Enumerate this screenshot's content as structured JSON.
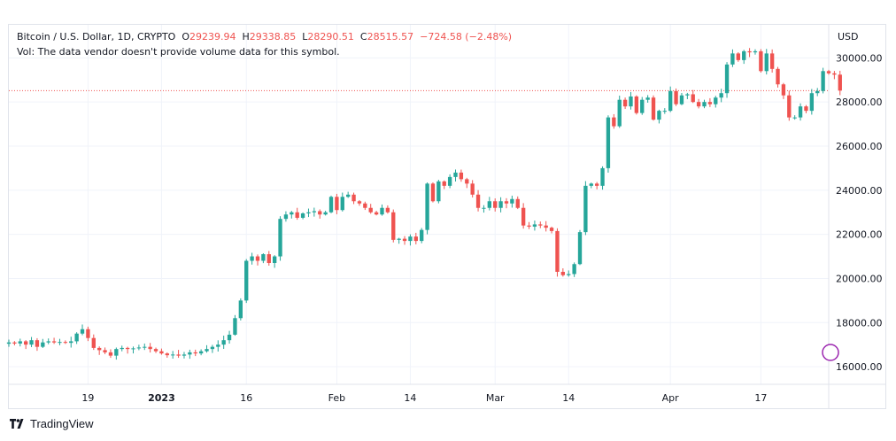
{
  "legend": {
    "symbol": "Bitcoin / U.S. Dollar, 1D, CRYPTO",
    "open_label": "O",
    "open": "29239.94",
    "high_label": "H",
    "high": "29338.85",
    "low_label": "L",
    "low": "28290.51",
    "close_label": "C",
    "close": "28515.57",
    "change": "−724.58 (−2.48%)",
    "volume_note": "Vol: The data vendor doesn't provide volume data for this symbol."
  },
  "brand": {
    "name": "TradingView",
    "logo_icon": "tradingview-logo-icon"
  },
  "colors": {
    "up": "#26a69a",
    "down": "#ef5350",
    "grid": "#f0f3fa",
    "text": "#131722",
    "last_price_line": "#ef5350",
    "marker": "#9c27b0"
  },
  "chart_data": {
    "type": "candlestick",
    "currency_label": "USD",
    "y_ticks": [
      16000,
      18000,
      20000,
      22000,
      24000,
      26000,
      28000,
      30000
    ],
    "y_tick_labels": [
      "16000.00",
      "18000.00",
      "20000.00",
      "22000.00",
      "24000.00",
      "26000.00",
      "28000.00",
      "30000.00"
    ],
    "ylim": [
      15200,
      31500
    ],
    "x_ticks": [
      {
        "date": "2022-12-19",
        "label": "19",
        "bold": false
      },
      {
        "date": "2023-01-01",
        "label": "2023",
        "bold": true
      },
      {
        "date": "2023-01-16",
        "label": "16",
        "bold": false
      },
      {
        "date": "2023-02-01",
        "label": "Feb",
        "bold": false
      },
      {
        "date": "2023-02-14",
        "label": "14",
        "bold": false
      },
      {
        "date": "2023-03-01",
        "label": "Mar",
        "bold": false
      },
      {
        "date": "2023-03-14",
        "label": "14",
        "bold": false
      },
      {
        "date": "2023-04-01",
        "label": "Apr",
        "bold": false
      },
      {
        "date": "2023-04-17",
        "label": "17",
        "bold": false
      }
    ],
    "last_price": 28515.57,
    "x_start": "2022-12-05",
    "x_end": "2023-04-29",
    "closes": [
      17100,
      17050,
      17150,
      17000,
      17200,
      16900,
      17100,
      17150,
      17100,
      17120,
      17080,
      17150,
      17500,
      17700,
      17300,
      16850,
      16750,
      16650,
      16500,
      16800,
      16850,
      16800,
      16830,
      16870,
      16900,
      16800,
      16700,
      16600,
      16520,
      16550,
      16500,
      16550,
      16650,
      16600,
      16700,
      16800,
      16900,
      17000,
      17200,
      17450,
      18200,
      19000,
      20800,
      21000,
      20800,
      21100,
      20700,
      21000,
      22700,
      22900,
      23000,
      22750,
      22950,
      23000,
      23050,
      22900,
      23000,
      23700,
      23100,
      23700,
      23800,
      23500,
      23400,
      23200,
      23000,
      22900,
      23200,
      23000,
      21750,
      21800,
      21700,
      21900,
      21700,
      22200,
      24300,
      23500,
      24400,
      24200,
      24600,
      24800,
      24500,
      24300,
      23800,
      23200,
      23200,
      23500,
      23200,
      23500,
      23400,
      23600,
      23200,
      22400,
      22350,
      22450,
      22400,
      22300,
      22150,
      20300,
      20150,
      20200,
      20650,
      22100,
      24200,
      24300,
      24200,
      25000,
      27300,
      26900,
      28100,
      27800,
      28250,
      27500,
      28100,
      28200,
      27200,
      27600,
      27600,
      28500,
      27900,
      28300,
      28350,
      28000,
      27800,
      28000,
      27900,
      28200,
      28400,
      29700,
      30200,
      29900,
      30300,
      30250,
      30300,
      29400,
      30200,
      29500,
      28800,
      28300,
      27300,
      27300,
      27800,
      27600,
      28400,
      28500,
      29400,
      29300,
      29240,
      28515.57
    ]
  }
}
